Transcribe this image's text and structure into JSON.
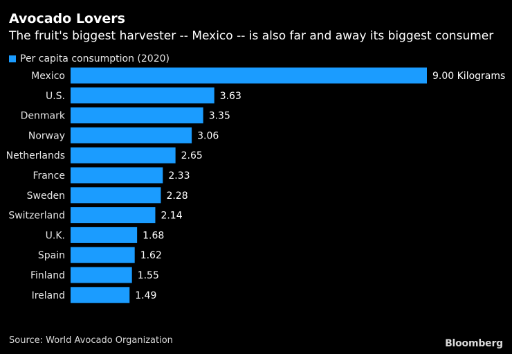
{
  "header": {
    "title": "Avocado Lovers",
    "subtitle": "The fruit's biggest harvester -- Mexico -- is also far and away its biggest consumer"
  },
  "colors": {
    "bar": "#1b9cff",
    "background": "#000000"
  },
  "chart_data": {
    "type": "bar",
    "orientation": "horizontal",
    "title": "Avocado Lovers",
    "subtitle": "The fruit's biggest harvester -- Mexico -- is also far and away its biggest consumer",
    "xlabel": "",
    "ylabel": "",
    "xlim": [
      0,
      9
    ],
    "grid": false,
    "legend_position": "top-left",
    "series": [
      {
        "name": "Per capita consumption (2020)",
        "unit_label": "Kilograms",
        "values": [
          9.0,
          3.63,
          3.35,
          3.06,
          2.65,
          2.33,
          2.28,
          2.14,
          1.68,
          1.62,
          1.55,
          1.49
        ],
        "labels": [
          "9.00 Kilograms",
          "3.63",
          "3.35",
          "3.06",
          "2.65",
          "2.33",
          "2.28",
          "2.14",
          "1.68",
          "1.62",
          "1.55",
          "1.49"
        ]
      }
    ],
    "categories": [
      "Mexico",
      "U.S.",
      "Denmark",
      "Norway",
      "Netherlands",
      "France",
      "Sweden",
      "Switzerland",
      "U.K.",
      "Spain",
      "Finland",
      "Ireland"
    ]
  },
  "footer": {
    "source": "Source: World Avocado Organization",
    "brand": "Bloomberg"
  }
}
